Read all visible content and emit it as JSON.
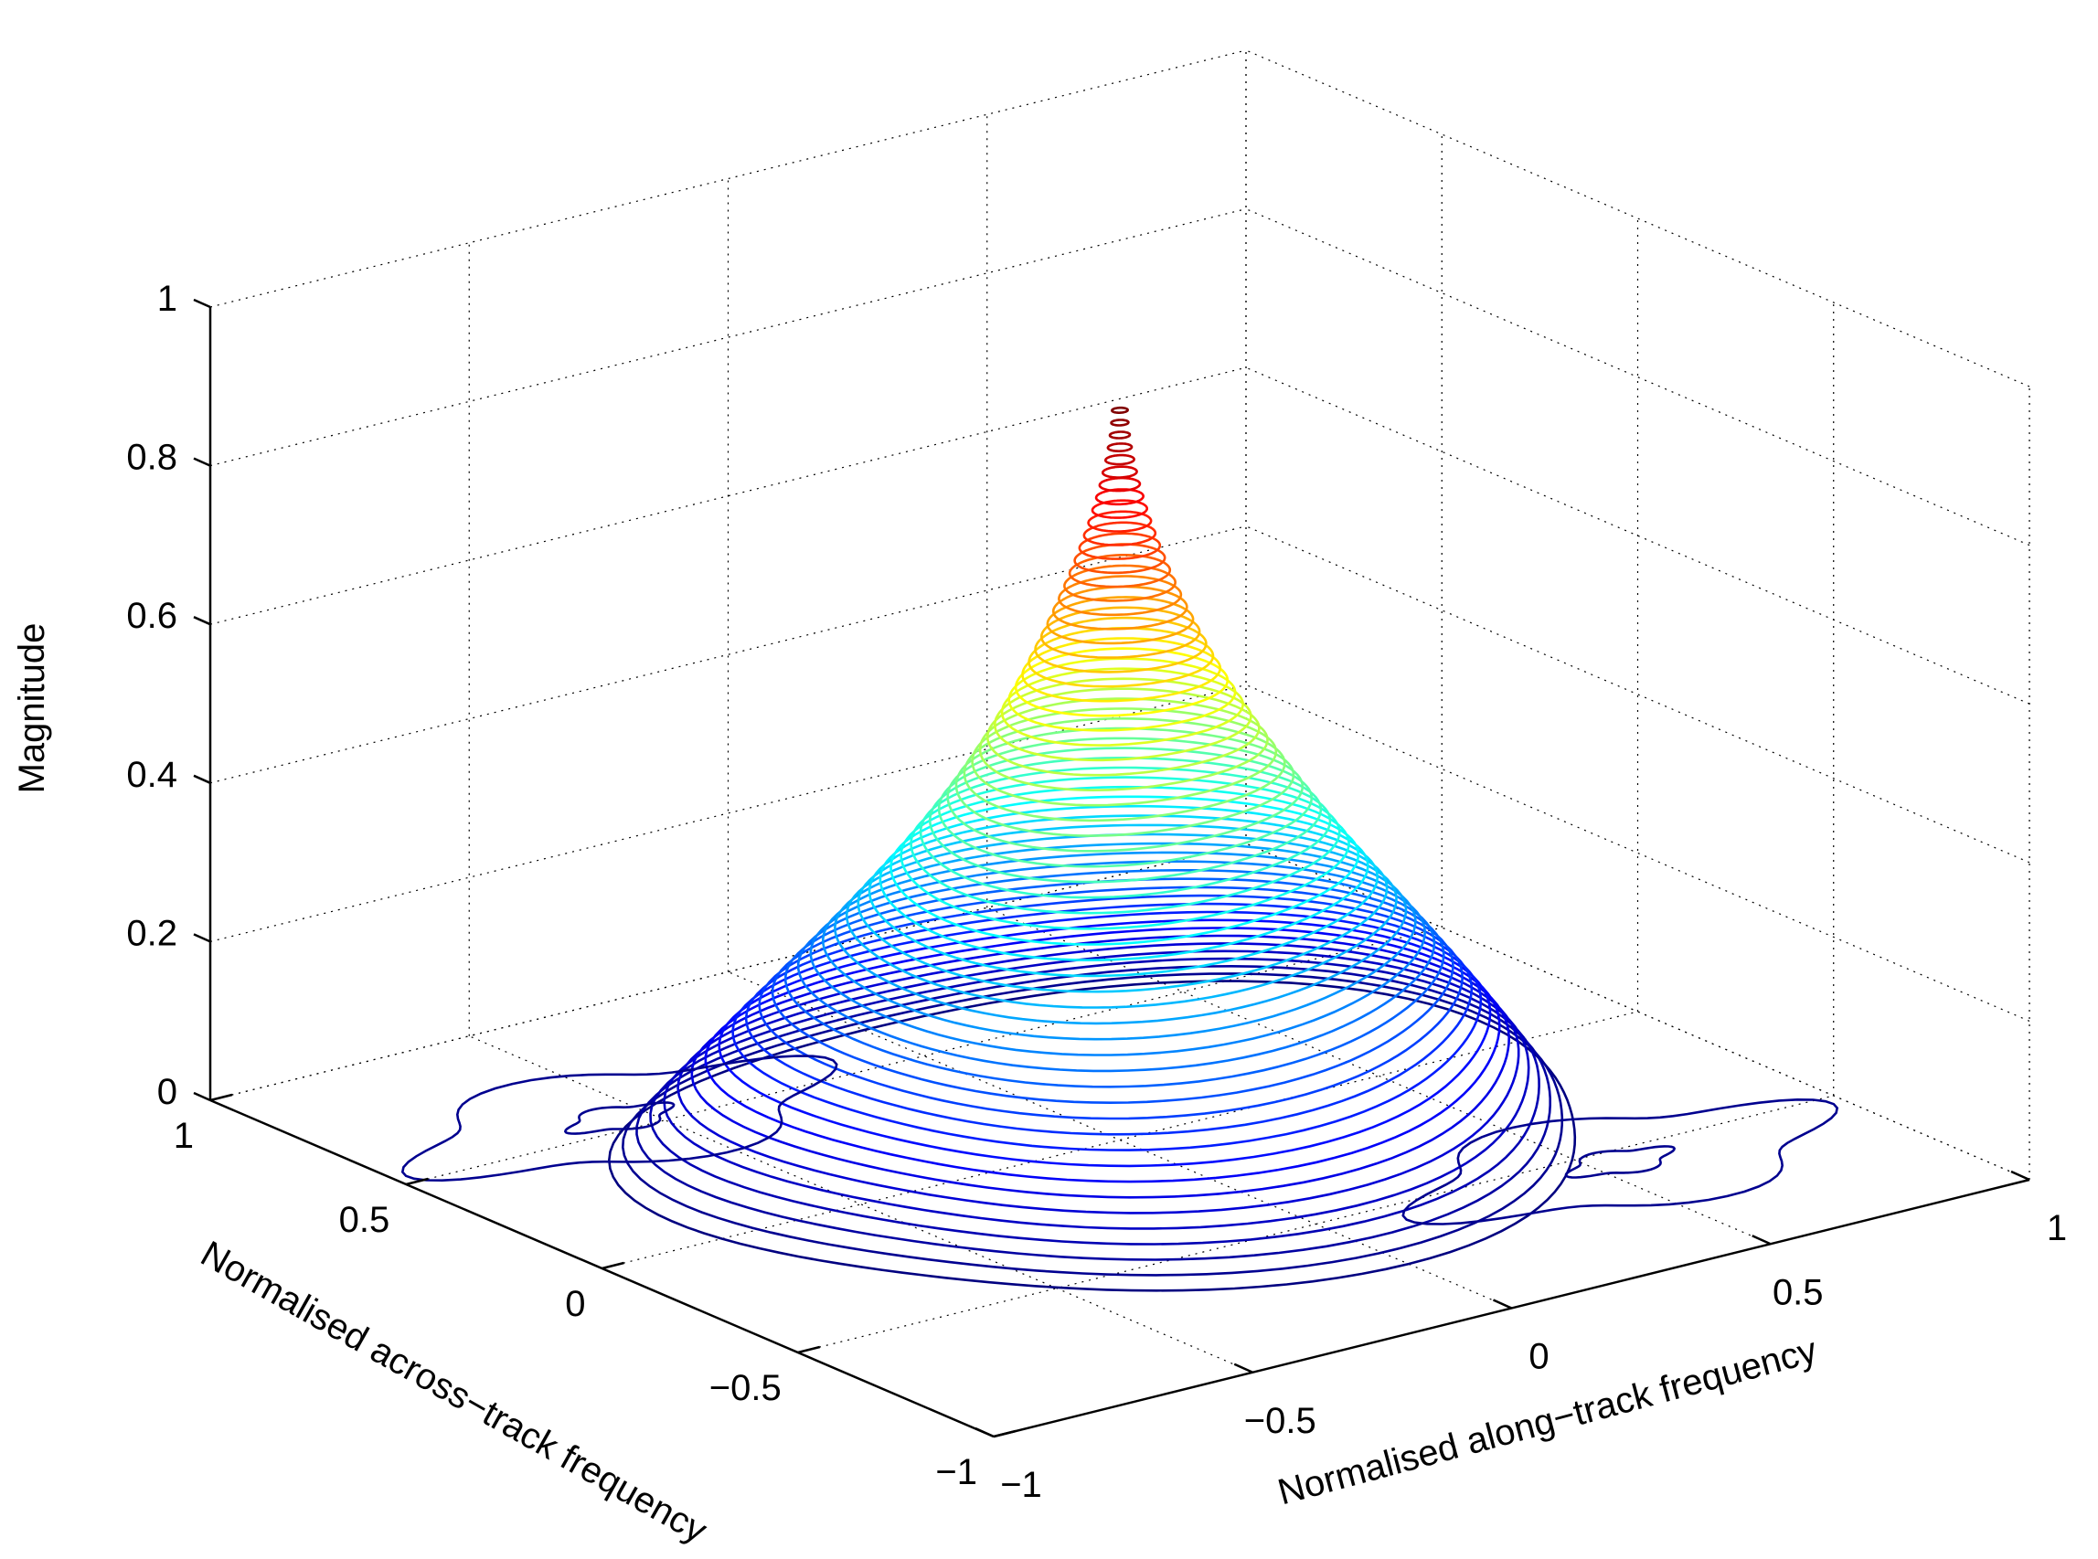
{
  "chart_data": {
    "type": "contour3",
    "title": "",
    "xlabel": "Normalised along−track frequency",
    "ylabel": "Normalised across−track frequency",
    "zlabel": "Magnitude",
    "xlim": [
      -1,
      1
    ],
    "ylim": [
      -1,
      1
    ],
    "zlim": [
      0,
      1
    ],
    "x_ticks": [
      "−1",
      "−0.5",
      "0",
      "0.5",
      "1"
    ],
    "x_tick_values": [
      -1,
      -0.5,
      0,
      0.5,
      1
    ],
    "y_ticks": [
      "−1",
      "−0.5",
      "0",
      "0.5",
      "1"
    ],
    "y_tick_values": [
      -1,
      -0.5,
      0,
      0.5,
      1
    ],
    "z_ticks": [
      "0",
      "0.2",
      "0.4",
      "0.6",
      "0.8",
      "1"
    ],
    "z_tick_values": [
      0,
      0.2,
      0.4,
      0.6,
      0.8,
      1
    ],
    "grid": true,
    "colormap": "jet",
    "peak": {
      "x": 0.0,
      "y": 0.0,
      "z": 0.92
    },
    "contour_levels": {
      "min": 0.0,
      "max": 0.92,
      "count": 60
    },
    "sidelobes": [
      {
        "x": -0.55,
        "y": 0.55,
        "level": 0.0
      },
      {
        "x": 0.55,
        "y": -0.55,
        "level": 0.0
      }
    ],
    "colors": {
      "low": "#00008f",
      "mid": "#00ffff",
      "high": "#800000"
    }
  }
}
